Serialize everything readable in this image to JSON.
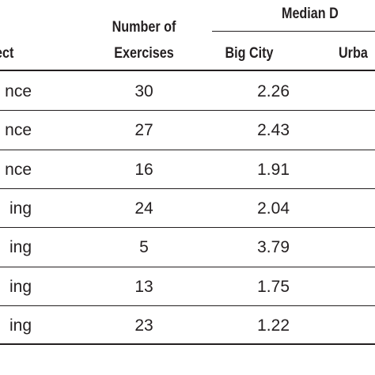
{
  "header": {
    "subject": "ect",
    "exercises": [
      "Number of",
      "Exercises"
    ],
    "median": "Median D",
    "big_city": "Big City",
    "urban": "Urba"
  },
  "table": {
    "rows": [
      [
        "nce",
        30,
        2.26
      ],
      [
        "nce",
        27,
        2.43
      ],
      [
        "nce",
        16,
        1.91
      ],
      [
        "ing",
        24,
        2.04
      ],
      [
        "ing",
        5,
        3.79
      ],
      [
        "ing",
        13,
        1.75
      ],
      [
        "ing",
        23,
        1.22
      ]
    ]
  }
}
